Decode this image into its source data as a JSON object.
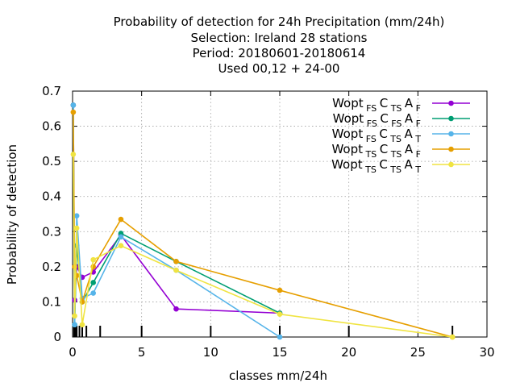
{
  "title_lines": [
    "Probability of detection  for 24h Precipitation (mm/24h)",
    "Selection: Ireland      28 stations",
    "Period: 20180601-20180614",
    "Used  00,12  + 24-00"
  ],
  "chart_data": {
    "type": "line",
    "title": "Probability of detection  for 24h Precipitation (mm/24h)",
    "xlabel": "classes mm/24h",
    "ylabel": "Probability of detection",
    "xlim": [
      0,
      30
    ],
    "ylim": [
      0,
      0.7
    ],
    "xticks": [
      0,
      5,
      10,
      15,
      20,
      25,
      30
    ],
    "yticks": [
      0,
      0.1,
      0.2,
      0.3,
      0.4,
      0.5,
      0.6,
      0.7
    ],
    "grid": true,
    "legend_position": "top-right",
    "class_marks": [
      0.1,
      0.2,
      0.3,
      0.5,
      0.7,
      1,
      2,
      5,
      10,
      15,
      20,
      27.5
    ],
    "series": [
      {
        "name": "Wopt FS C TS A F",
        "color": "#9400d3",
        "x": [
          0.05,
          0.15,
          0.3,
          0.7,
          1.5,
          3.5,
          7.5,
          15
        ],
        "y": [
          0.66,
          0.105,
          0.2,
          0.17,
          0.185,
          0.29,
          0.08,
          0.068
        ]
      },
      {
        "name": "Wopt FS C FS A F",
        "color": "#009e73",
        "x": [
          0.05,
          0.15,
          0.3,
          0.7,
          1.5,
          3.5,
          7.5,
          15
        ],
        "y": [
          0.66,
          0.035,
          0.26,
          0.1,
          0.155,
          0.295,
          0.215,
          0.068
        ]
      },
      {
        "name": "Wopt FS C TS A T",
        "color": "#56b4e9",
        "x": [
          0.05,
          0.15,
          0.3,
          0.7,
          1.5,
          3.5,
          7.5,
          15
        ],
        "y": [
          0.66,
          0.035,
          0.345,
          0.11,
          0.125,
          0.285,
          0.19,
          0.0
        ]
      },
      {
        "name": "Wopt TS C TS A F",
        "color": "#e69f00",
        "x": [
          0.05,
          0.15,
          0.3,
          0.7,
          1.5,
          3.5,
          7.5,
          15,
          27.5
        ],
        "y": [
          0.64,
          0.2,
          0.175,
          0.1,
          0.2,
          0.335,
          0.215,
          0.133,
          0.0
        ]
      },
      {
        "name": "Wopt TS C TS A T",
        "color": "#f0e442",
        "x": [
          0.05,
          0.15,
          0.3,
          0.7,
          1.5,
          3.5,
          7.5,
          15,
          27.5
        ],
        "y": [
          0.52,
          0.06,
          0.31,
          0.035,
          0.22,
          0.26,
          0.19,
          0.065,
          0.0
        ]
      }
    ]
  },
  "legend_labels": [
    {
      "base": "Wopt",
      "s1": "FS",
      "c": "C",
      "s2": "TS",
      "a": "A",
      "s3": "F"
    },
    {
      "base": "Wopt",
      "s1": "FS",
      "c": "C",
      "s2": "FS",
      "a": "A",
      "s3": "F"
    },
    {
      "base": "Wopt",
      "s1": "FS",
      "c": "C",
      "s2": "TS",
      "a": "A",
      "s3": "T"
    },
    {
      "base": "Wopt",
      "s1": "TS",
      "c": "C",
      "s2": "TS",
      "a": "A",
      "s3": "F"
    },
    {
      "base": "Wopt",
      "s1": "TS",
      "c": "C",
      "s2": "TS",
      "a": "A",
      "s3": "T"
    }
  ]
}
